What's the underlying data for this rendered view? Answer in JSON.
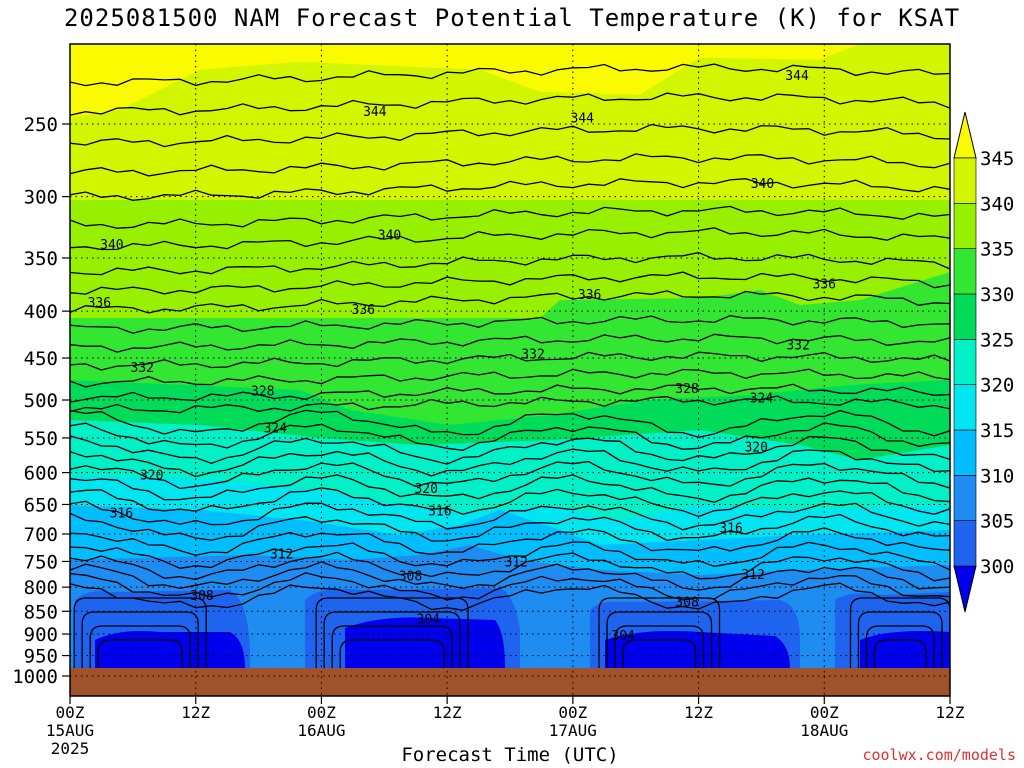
{
  "header": {
    "title": "2025081500 NAM Forecast Potential Temperature (K) for KSAT"
  },
  "footer": {
    "xlabel": "Forecast Time (UTC)",
    "credit": "coolwx.com/models"
  },
  "colors": {
    "ground": "#a0522d",
    "contour": "#000000",
    "grid": "#000000"
  },
  "chart_data": {
    "type": "contour",
    "title": "2025081500 NAM Forecast Potential Temperature (K) for KSAT",
    "xlabel": "Forecast Time (UTC)",
    "ylabel": "",
    "y_axis": {
      "scale": "log-pressure",
      "reversed": true,
      "ticks": [
        250,
        300,
        350,
        400,
        450,
        500,
        550,
        600,
        650,
        700,
        750,
        800,
        850,
        900,
        950,
        1000
      ]
    },
    "x_axis": {
      "range_hours": [
        0,
        84
      ],
      "ticks": [
        {
          "hour": 0,
          "l1": "00Z",
          "l2": "15AUG",
          "l3": "2025"
        },
        {
          "hour": 12,
          "l1": "12Z",
          "l2": "",
          "l3": ""
        },
        {
          "hour": 24,
          "l1": "00Z",
          "l2": "16AUG",
          "l3": ""
        },
        {
          "hour": 36,
          "l1": "12Z",
          "l2": "",
          "l3": ""
        },
        {
          "hour": 48,
          "l1": "00Z",
          "l2": "17AUG",
          "l3": ""
        },
        {
          "hour": 60,
          "l1": "12Z",
          "l2": "",
          "l3": ""
        },
        {
          "hour": 72,
          "l1": "00Z",
          "l2": "18AUG",
          "l3": ""
        },
        {
          "hour": 84,
          "l1": "12Z",
          "l2": "",
          "l3": ""
        }
      ]
    },
    "grid": true,
    "colorbar": {
      "levels": [
        300,
        305,
        310,
        315,
        320,
        325,
        330,
        335,
        340,
        345
      ],
      "colors": [
        "#0000ee",
        "#1e64ee",
        "#1e8cf0",
        "#00beff",
        "#00e6f0",
        "#00f0c8",
        "#00dc5a",
        "#32e632",
        "#96f000",
        "#d2f500",
        "#fafa00"
      ]
    },
    "contour_labels": [
      {
        "value": "344",
        "hour": 69.4,
        "p": 221
      },
      {
        "value": "344",
        "hour": 29.1,
        "p": 242
      },
      {
        "value": "344",
        "hour": 48.9,
        "p": 246
      },
      {
        "value": "340",
        "hour": 66.1,
        "p": 290
      },
      {
        "value": "340",
        "hour": 30.5,
        "p": 330
      },
      {
        "value": "340",
        "hour": 4.0,
        "p": 338
      },
      {
        "value": "336",
        "hour": 72.0,
        "p": 373
      },
      {
        "value": "336",
        "hour": 49.6,
        "p": 383
      },
      {
        "value": "336",
        "hour": 28.0,
        "p": 398
      },
      {
        "value": "336",
        "hour": 2.8,
        "p": 391
      },
      {
        "value": "332",
        "hour": 69.5,
        "p": 435
      },
      {
        "value": "332",
        "hour": 44.2,
        "p": 445
      },
      {
        "value": "332",
        "hour": 6.9,
        "p": 460
      },
      {
        "value": "328",
        "hour": 58.9,
        "p": 485
      },
      {
        "value": "328",
        "hour": 18.4,
        "p": 488
      },
      {
        "value": "324",
        "hour": 66.0,
        "p": 497
      },
      {
        "value": "324",
        "hour": 19.6,
        "p": 536
      },
      {
        "value": "320",
        "hour": 65.5,
        "p": 562
      },
      {
        "value": "320",
        "hour": 7.8,
        "p": 603
      },
      {
        "value": "320",
        "hour": 34.0,
        "p": 624
      },
      {
        "value": "316",
        "hour": 35.3,
        "p": 660
      },
      {
        "value": "316",
        "hour": 4.9,
        "p": 663
      },
      {
        "value": "316",
        "hour": 63.1,
        "p": 689
      },
      {
        "value": "312",
        "hour": 20.2,
        "p": 735
      },
      {
        "value": "312",
        "hour": 42.6,
        "p": 750
      },
      {
        "value": "312",
        "hour": 65.2,
        "p": 774
      },
      {
        "value": "308",
        "hour": 32.5,
        "p": 777
      },
      {
        "value": "308",
        "hour": 12.6,
        "p": 816
      },
      {
        "value": "308",
        "hour": 58.9,
        "p": 829
      },
      {
        "value": "304",
        "hour": 34.2,
        "p": 866
      },
      {
        "value": "304",
        "hour": 52.8,
        "p": 902
      }
    ]
  }
}
